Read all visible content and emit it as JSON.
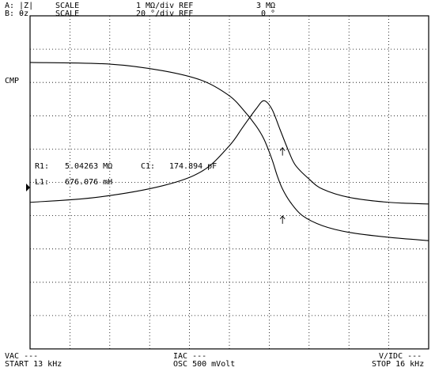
{
  "header": {
    "a_label": "A: |Z|",
    "a_scale": "SCALE",
    "a_value": "1 MΩ/div REF",
    "a_ref": "3 MΩ",
    "b_label": "B: θz",
    "b_scale": "SCALE",
    "b_value": "20 °/div REF",
    "b_ref": "0 °"
  },
  "side": {
    "cmp": "CMP"
  },
  "markers": {
    "r1_label": "R1:",
    "r1_value": "5.04263 MΩ",
    "c1_label": "C1:",
    "c1_value": "174.894 pF",
    "l1_label": "L1:",
    "l1_value": "676.076 mH"
  },
  "footer": {
    "vac": "VAC ---",
    "start": "START 13 kHz",
    "iac": "IAC ---",
    "osc": "OSC 500 mVolt",
    "vidc": "V/IDC ---",
    "stop": "STOP 16 kHz"
  },
  "chart_data": {
    "type": "line",
    "xlim": [
      13,
      16
    ],
    "x_unit": "kHz",
    "grid": true,
    "divisions": {
      "x": 10,
      "y": 10
    },
    "series": [
      {
        "x": [
          13.0,
          13.6,
          14.0,
          14.3,
          14.5,
          14.6,
          14.7,
          14.76,
          14.82,
          14.86,
          14.9,
          14.96,
          15.05,
          15.2,
          15.4,
          15.7,
          16.0
        ],
        "values": [
          3.6,
          3.55,
          3.35,
          3.05,
          2.6,
          2.2,
          1.7,
          1.3,
          0.7,
          0.2,
          -0.2,
          -0.6,
          -1.0,
          -1.3,
          -1.5,
          -1.65,
          -1.75
        ]
      },
      {
        "x": [
          13.0,
          13.5,
          14.0,
          14.3,
          14.5,
          14.6,
          14.7,
          14.76,
          14.82,
          14.88,
          14.95,
          15.0,
          15.1,
          15.2,
          15.4,
          15.7,
          16.0
        ],
        "values": [
          -0.6,
          -0.45,
          -0.1,
          0.35,
          1.1,
          1.65,
          2.2,
          2.45,
          2.2,
          1.6,
          0.9,
          0.5,
          0.1,
          -0.2,
          -0.45,
          -0.6,
          -0.65
        ]
      }
    ],
    "markers": [
      {
        "x": 14.9,
        "y": 0.9
      },
      {
        "x": 14.9,
        "y": -1.15
      }
    ]
  }
}
